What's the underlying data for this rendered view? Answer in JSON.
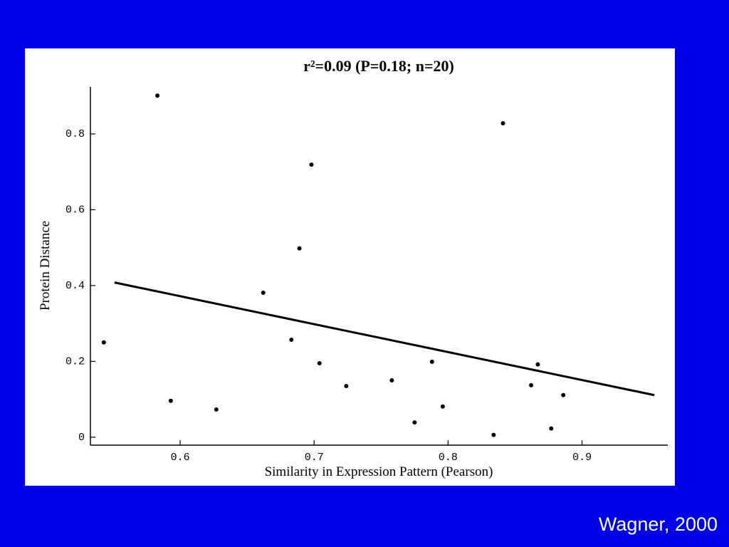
{
  "chart_data": {
    "type": "scatter",
    "title": "r²=0.09 (P=0.18; n=20)",
    "x_label": "Similarity in Expression Pattern (Pearson)",
    "y_label": "Protein Distance",
    "x": [
      0.543,
      0.583,
      0.593,
      0.627,
      0.662,
      0.683,
      0.689,
      0.698,
      0.704,
      0.724,
      0.758,
      0.775,
      0.788,
      0.796,
      0.834,
      0.841,
      0.862,
      0.867,
      0.877,
      0.886
    ],
    "values": [
      0.25,
      0.901,
      0.096,
      0.073,
      0.381,
      0.257,
      0.498,
      0.719,
      0.195,
      0.135,
      0.15,
      0.039,
      0.199,
      0.081,
      0.006,
      0.828,
      0.137,
      0.192,
      0.023,
      0.111
    ],
    "color": "#000000",
    "fit_line": {
      "x": [
        0.551,
        0.954
      ],
      "y": [
        0.408,
        0.111
      ]
    },
    "xlim": [
      0.533,
      0.964
    ],
    "ylim": [
      -0.021,
      0.924
    ],
    "xticks": [
      0.6,
      0.7,
      0.8,
      0.9
    ],
    "yticks": [
      0,
      0.2,
      0.4,
      0.6,
      0.8
    ],
    "grid": false
  },
  "caption": "Wagner, 2000"
}
